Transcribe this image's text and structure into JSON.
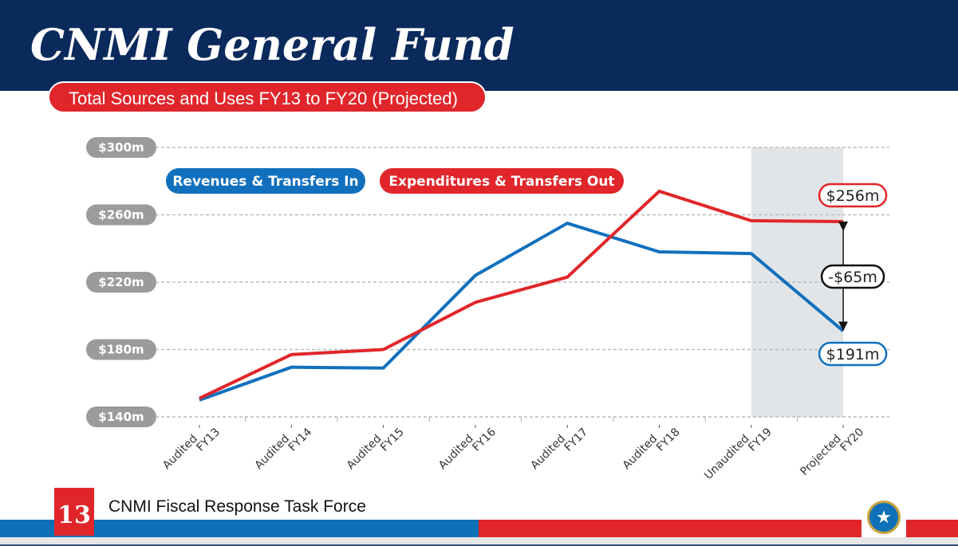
{
  "header": {
    "title": "CNMI General Fund",
    "subtitle": "Total Sources and Uses FY13 to FY20 (Projected)"
  },
  "footer": {
    "page_number": "13",
    "org": "CNMI Fiscal Response Task Force",
    "seal_icon": "star"
  },
  "chart_data": {
    "type": "line",
    "title": "Total Sources and Uses FY13 to FY20 (Projected)",
    "categories": [
      [
        "Audited",
        "FY13"
      ],
      [
        "Audited",
        "FY14"
      ],
      [
        "Audited",
        "FY15"
      ],
      [
        "Audited",
        "FY16"
      ],
      [
        "Audited",
        "FY17"
      ],
      [
        "Audited",
        "FY18"
      ],
      [
        "Unaudited",
        "FY19"
      ],
      [
        "Projected",
        "FY20"
      ]
    ],
    "yticks": [
      "$140m",
      "$180m",
      "$220m",
      "$260m",
      "$300m"
    ],
    "ytick_values": [
      140,
      180,
      220,
      260,
      300
    ],
    "ylim": [
      140,
      300
    ],
    "series": [
      {
        "name": "Revenues & Transfers In",
        "color": "#1170bd",
        "values": [
          150,
          169.5,
          169,
          224,
          255,
          238,
          237,
          191
        ]
      },
      {
        "name": "Expenditures & Transfers Out",
        "color": "#e0262a",
        "values": [
          151,
          177,
          180,
          208,
          223,
          274,
          256.5,
          256
        ]
      }
    ],
    "annotations": {
      "rev_end": "$191m",
      "exp_end": "$256m",
      "gap": "-$65m"
    },
    "shaded_categories": [
      "FY19",
      "FY20"
    ],
    "grid": true,
    "legend": "top-left"
  }
}
